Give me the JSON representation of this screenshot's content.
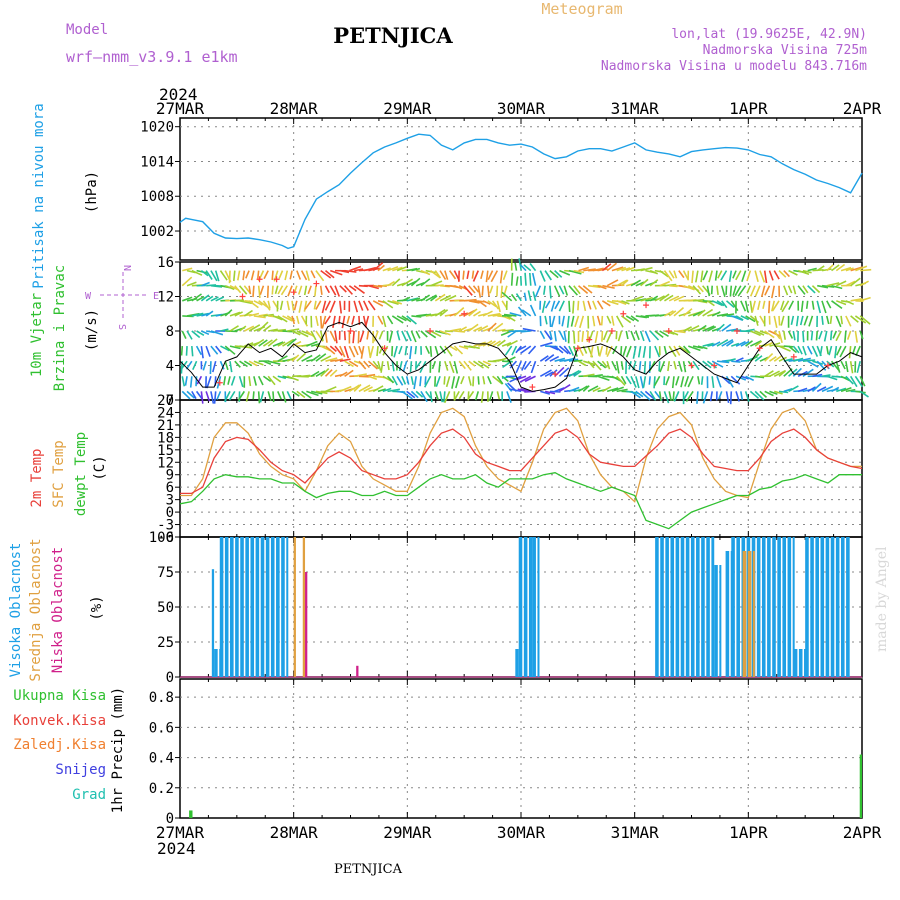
{
  "header": {
    "model_label": "Model",
    "model_name": "wrf–nmm_v3.9.1  e1km",
    "station": "PETNJICA",
    "product": "Meteogram",
    "coords": "lon,lat (19.9625E, 42.9N)",
    "altitude": "Nadmorska Visina 725m",
    "model_altitude": "Nadmorska Visina u modelu 843.716m",
    "footer_station": "PETNJICA",
    "watermark": "made by Angel"
  },
  "time_axis": {
    "year": "2024",
    "labels": [
      "27MAR",
      "28MAR",
      "29MAR",
      "30MAR",
      "31MAR",
      "1APR",
      "2APR"
    ]
  },
  "colors": {
    "pressure": "#1ea0e6",
    "temp2m": "#e8403a",
    "sfc_temp": "#e0a040",
    "dewpt": "#30c030",
    "wind_speed_line": "#000000",
    "gust_marker": "#ff4040",
    "cloud_high": "#1ea0e6",
    "cloud_mid": "#e0a040",
    "cloud_low": "#d0208a",
    "precip_total": "#30c030",
    "convective": "#e8403a",
    "freezing": "#f08030",
    "snow": "#4040e0",
    "hail": "#20c0b0"
  },
  "chart_data": [
    {
      "type": "line",
      "title": "",
      "ylabels": [
        "Pritisak na nivou mora",
        "(hPa)"
      ],
      "yticks": [
        1002,
        1008,
        1014,
        1020
      ],
      "ylim": [
        997,
        1021.5
      ],
      "x_unit_days_from": "27MAR",
      "grid": true,
      "series": [
        {
          "name": "Pritisak na nivou mora",
          "x": [
            0,
            0.05,
            0.1,
            0.2,
            0.3,
            0.35,
            0.4,
            0.5,
            0.6,
            0.7,
            0.8,
            0.9,
            0.95,
            1.0,
            1.1,
            1.2,
            1.3,
            1.4,
            1.5,
            1.6,
            1.7,
            1.8,
            1.9,
            2.0,
            2.1,
            2.2,
            2.3,
            2.4,
            2.5,
            2.6,
            2.7,
            2.8,
            2.9,
            3.0,
            3.1,
            3.2,
            3.3,
            3.4,
            3.5,
            3.6,
            3.7,
            3.8,
            3.9,
            4.0,
            4.1,
            4.2,
            4.3,
            4.4,
            4.5,
            4.6,
            4.7,
            4.8,
            4.9,
            5.0,
            5.1,
            5.2,
            5.3,
            5.4,
            5.5,
            5.6,
            5.7,
            5.8,
            5.9,
            6.0
          ],
          "values": [
            1003.5,
            1004.2,
            1004.0,
            1003.6,
            1001.6,
            1001.2,
            1000.8,
            1000.7,
            1000.8,
            1000.5,
            1000.1,
            999.5,
            999.0,
            999.3,
            1004.0,
            1007.5,
            1008.8,
            1010.0,
            1012.0,
            1013.8,
            1015.5,
            1016.5,
            1017.2,
            1018.0,
            1018.7,
            1018.5,
            1016.8,
            1016.0,
            1017.2,
            1017.8,
            1017.8,
            1017.2,
            1016.8,
            1017.0,
            1016.5,
            1015.3,
            1014.5,
            1014.8,
            1015.8,
            1016.2,
            1016.2,
            1015.8,
            1016.5,
            1017.2,
            1016.0,
            1015.6,
            1015.3,
            1014.8,
            1015.7,
            1016.0,
            1016.2,
            1016.4,
            1016.3,
            1016.0,
            1015.2,
            1014.8,
            1013.6,
            1012.6,
            1011.8,
            1010.8,
            1010.2,
            1009.5,
            1008.6,
            1012.0
          ]
        }
      ]
    },
    {
      "type": "line",
      "title": "",
      "ylabels": [
        "10m Vjetar",
        "Brzina i Pravac",
        "(m/s)"
      ],
      "direction_legend": [
        "N",
        "E",
        "W",
        "S"
      ],
      "yticks": [
        0,
        4,
        8,
        12,
        16
      ],
      "ylim": [
        0,
        16
      ],
      "grid": true,
      "series": [
        {
          "name": "wind speed",
          "x": [
            0,
            0.1,
            0.2,
            0.3,
            0.35,
            0.4,
            0.5,
            0.6,
            0.7,
            0.8,
            0.9,
            1.0,
            1.1,
            1.2,
            1.3,
            1.4,
            1.5,
            1.6,
            1.7,
            1.8,
            1.9,
            2.0,
            2.1,
            2.2,
            2.3,
            2.4,
            2.5,
            2.6,
            2.7,
            2.8,
            2.9,
            3.0,
            3.1,
            3.2,
            3.3,
            3.4,
            3.5,
            3.6,
            3.7,
            3.8,
            3.9,
            4.0,
            4.1,
            4.2,
            4.3,
            4.4,
            4.5,
            4.6,
            4.7,
            4.8,
            4.9,
            5.0,
            5.1,
            5.2,
            5.3,
            5.4,
            5.5,
            5.6,
            5.7,
            5.8,
            5.9,
            6.0
          ],
          "values": [
            4.5,
            3.2,
            1.5,
            1.5,
            3,
            4.5,
            5,
            6.5,
            5.5,
            6,
            5,
            6.5,
            5.5,
            5.8,
            8.5,
            9,
            8.5,
            9,
            7.5,
            5.5,
            4,
            3,
            3.5,
            4.5,
            5.5,
            6.5,
            6.8,
            6.5,
            6.5,
            6,
            4.5,
            1.5,
            1,
            1.2,
            1.5,
            2.5,
            6,
            6.2,
            6.5,
            6,
            5,
            3.5,
            3,
            4.5,
            5.5,
            6,
            5,
            4,
            3,
            2.5,
            2,
            4,
            6,
            7,
            5,
            3,
            3,
            3,
            4,
            4.5,
            5.5,
            5
          ]
        },
        {
          "name": "gust",
          "x": [
            0.35,
            0.55,
            0.7,
            0.85,
            1.0,
            1.2,
            1.5,
            1.8,
            2.2,
            2.5,
            3.1,
            3.3,
            3.5,
            3.6,
            3.8,
            3.9,
            4.1,
            4.3,
            4.5,
            4.7,
            4.9,
            5.1,
            5.4,
            5.7
          ],
          "values": [
            2,
            12,
            14,
            14,
            12.5,
            13.5,
            8,
            6,
            8,
            10,
            1.5,
            3,
            6,
            7,
            8,
            10,
            11,
            8,
            4,
            4,
            8,
            6,
            5,
            4
          ]
        }
      ]
    },
    {
      "type": "line",
      "title": "",
      "ylabels": [
        "2m Temp",
        "SFC Temp",
        "dewpt Temp",
        "(C)"
      ],
      "yticks": [
        -6,
        -3,
        0,
        3,
        6,
        9,
        12,
        15,
        18,
        21,
        24,
        27
      ],
      "ylim": [
        -6,
        27
      ],
      "grid": true,
      "series": [
        {
          "name": "2m Temp",
          "x": [
            0,
            0.1,
            0.2,
            0.3,
            0.4,
            0.5,
            0.6,
            0.7,
            0.8,
            0.9,
            1.0,
            1.1,
            1.2,
            1.3,
            1.4,
            1.5,
            1.6,
            1.7,
            1.8,
            1.9,
            2.0,
            2.1,
            2.2,
            2.3,
            2.4,
            2.5,
            2.6,
            2.7,
            2.8,
            2.9,
            3.0,
            3.1,
            3.2,
            3.3,
            3.4,
            3.5,
            3.6,
            3.7,
            3.8,
            3.9,
            4.0,
            4.1,
            4.2,
            4.3,
            4.4,
            4.5,
            4.6,
            4.7,
            4.8,
            4.9,
            5.0,
            5.1,
            5.2,
            5.3,
            5.4,
            5.5,
            5.6,
            5.7,
            5.8,
            5.9,
            6.0
          ],
          "values": [
            4.5,
            4.5,
            6,
            13,
            17,
            18,
            17.5,
            15,
            12,
            10,
            9,
            7,
            10,
            13,
            14.5,
            13,
            10,
            9,
            8,
            8,
            9,
            12,
            16,
            19,
            20,
            18,
            14,
            12,
            11,
            10,
            10,
            13,
            16,
            19,
            20,
            18,
            14,
            12,
            11.5,
            11,
            11,
            13.5,
            16,
            19,
            20,
            18,
            14,
            11,
            10.5,
            10,
            10,
            13,
            17,
            19,
            20,
            18,
            15,
            13,
            12,
            11,
            10.5
          ]
        },
        {
          "name": "SFC Temp",
          "x": [
            0,
            0.1,
            0.2,
            0.3,
            0.4,
            0.5,
            0.6,
            0.7,
            0.8,
            0.9,
            1.0,
            1.1,
            1.2,
            1.3,
            1.4,
            1.5,
            1.6,
            1.7,
            1.8,
            1.9,
            2.0,
            2.1,
            2.2,
            2.3,
            2.4,
            2.5,
            2.6,
            2.7,
            2.8,
            2.9,
            3.0,
            3.1,
            3.2,
            3.3,
            3.4,
            3.5,
            3.6,
            3.7,
            3.8,
            3.9,
            4.0,
            4.1,
            4.2,
            4.3,
            4.4,
            4.5,
            4.6,
            4.7,
            4.8,
            4.9,
            5.0,
            5.1,
            5.2,
            5.3,
            5.4,
            5.5,
            5.6,
            5.7,
            5.8,
            5.9,
            6.0
          ],
          "values": [
            4,
            4,
            8,
            18,
            21.5,
            21.5,
            19,
            14,
            11,
            9,
            8,
            5,
            10,
            16,
            19,
            17,
            11,
            8,
            6.5,
            5,
            5,
            11,
            19,
            24,
            25,
            23,
            16,
            11,
            8,
            6.5,
            5,
            12,
            20,
            24,
            25,
            22,
            14,
            9,
            6,
            5,
            2.5,
            13,
            20,
            23,
            24,
            21,
            13,
            8,
            5,
            4,
            3.5,
            12,
            20,
            24,
            25,
            22,
            15,
            13,
            12,
            11,
            11
          ]
        },
        {
          "name": "dewpt Temp",
          "x": [
            0,
            0.1,
            0.2,
            0.3,
            0.4,
            0.5,
            0.6,
            0.7,
            0.8,
            0.9,
            1.0,
            1.1,
            1.2,
            1.3,
            1.4,
            1.5,
            1.6,
            1.7,
            1.8,
            1.9,
            2.0,
            2.1,
            2.2,
            2.3,
            2.4,
            2.5,
            2.6,
            2.7,
            2.8,
            2.9,
            3.0,
            3.1,
            3.2,
            3.3,
            3.4,
            3.5,
            3.6,
            3.7,
            3.8,
            3.9,
            4.0,
            4.1,
            4.2,
            4.3,
            4.4,
            4.5,
            4.6,
            4.7,
            4.8,
            4.9,
            5.0,
            5.1,
            5.2,
            5.3,
            5.4,
            5.5,
            5.6,
            5.7,
            5.8,
            5.9,
            6.0
          ],
          "values": [
            2,
            2.5,
            5,
            8,
            9,
            8.5,
            8.5,
            8,
            8,
            7,
            7,
            5,
            3.5,
            4.5,
            5,
            5,
            4,
            4,
            5,
            4,
            4,
            6,
            8,
            9,
            8,
            8,
            9,
            7,
            6,
            8,
            8,
            8,
            9,
            9.5,
            8,
            7,
            6,
            5,
            6,
            5,
            4,
            -2,
            -3,
            -4,
            -2,
            0,
            1,
            2,
            3,
            4,
            4,
            5.5,
            6,
            7.5,
            8,
            9,
            8,
            7,
            9,
            9,
            9
          ]
        }
      ]
    },
    {
      "type": "bar",
      "title": "",
      "ylabels": [
        "Visoka Oblacnost",
        "Srednja Oblacnost",
        "Niska Oblacnost",
        "(%)"
      ],
      "yticks": [
        0,
        25,
        50,
        75,
        100
      ],
      "ylim": [
        0,
        100
      ],
      "grid": true,
      "series": [
        {
          "name": "Visoka Oblacnost",
          "segments": [
            [
              0.28,
              0.3,
              77
            ],
            [
              0.3,
              0.35,
              20
            ],
            [
              0.35,
              0.95,
              100
            ],
            [
              2.95,
              2.98,
              20
            ],
            [
              2.98,
              3.1,
              100
            ],
            [
              3.1,
              3.15,
              100
            ],
            [
              4.18,
              4.7,
              100
            ],
            [
              4.7,
              4.75,
              80
            ],
            [
              4.8,
              4.85,
              90
            ],
            [
              4.85,
              5.4,
              100
            ],
            [
              5.4,
              5.5,
              20
            ],
            [
              5.5,
              5.9,
              100
            ]
          ]
        },
        {
          "name": "Srednja Oblacnost",
          "segments": [
            [
              1.0,
              1.02,
              100
            ],
            [
              1.08,
              1.1,
              100
            ],
            [
              4.95,
              5.05,
              90
            ]
          ]
        },
        {
          "name": "Niska Oblacnost",
          "segments": [
            [
              1.1,
              1.12,
              75
            ],
            [
              1.55,
              1.57,
              8
            ]
          ]
        }
      ]
    },
    {
      "type": "bar",
      "title": "",
      "ylabels": [
        "1hr Precip (mm)"
      ],
      "legend": [
        "Ukupna Kisa",
        "Konvek.Kisa",
        "Zaledj.Kisa",
        "Snijeg",
        "Grad"
      ],
      "yticks": [
        0,
        0.2,
        0.4,
        0.6,
        0.8
      ],
      "ylim": [
        0,
        0.92
      ],
      "grid": true,
      "series": [
        {
          "name": "Ukupna Kisa",
          "segments": [
            [
              0.08,
              0.11,
              0.05
            ],
            [
              5.98,
              6.0,
              0.42
            ]
          ]
        }
      ]
    }
  ]
}
